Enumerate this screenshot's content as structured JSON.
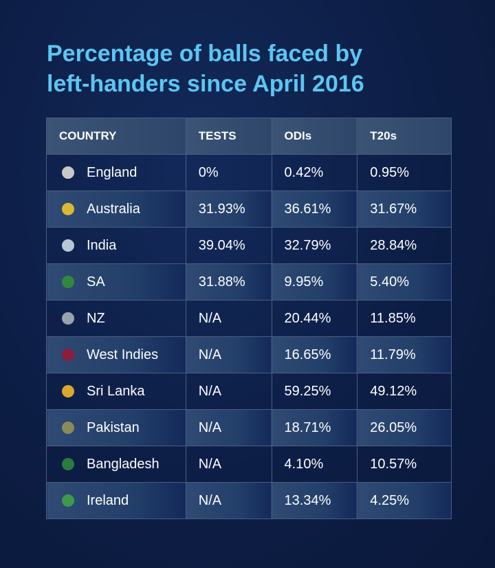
{
  "title": "Percentage of balls faced by left-handers since April 2016",
  "table": {
    "header": [
      "COUNTRY",
      "TESTS",
      "ODIs",
      "T20s"
    ],
    "rows": [
      [
        "England",
        "0%",
        "0.42%",
        "0.95%"
      ],
      [
        "Australia",
        "31.93%",
        "36.61%",
        "31.67%"
      ],
      [
        "India",
        "39.04%",
        "32.79%",
        "28.84%"
      ],
      [
        "SA",
        "31.88%",
        "9.95%",
        "5.40%"
      ],
      [
        "NZ",
        "N/A",
        "20.44%",
        "11.85%"
      ],
      [
        "West Indies",
        "N/A",
        "16.65%",
        "11.79%"
      ],
      [
        "Sri Lanka",
        "N/A",
        "59.25%",
        "49.12%"
      ],
      [
        "Pakistan",
        "N/A",
        "18.71%",
        "26.05%"
      ],
      [
        "Bangladesh",
        "N/A",
        "4.10%",
        "10.57%"
      ],
      [
        "Ireland",
        "N/A",
        "13.34%",
        "4.25%"
      ]
    ]
  }
}
